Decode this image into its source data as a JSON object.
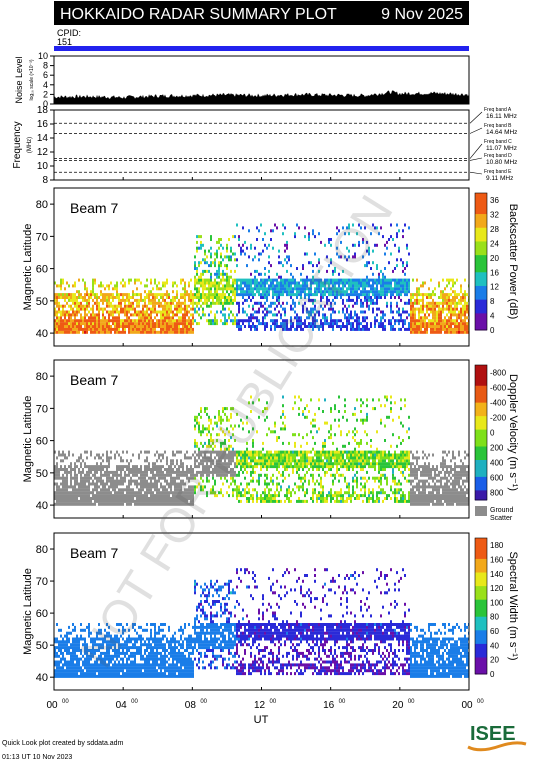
{
  "header": {
    "title": "HOKKAIDO RADAR SUMMARY PLOT",
    "date": "9 Nov 2025",
    "cpid_label": "CPID:",
    "cpid_value": "151"
  },
  "footer": {
    "credit": "Quick Look plot created by sddata.adm",
    "timestamp": "01:13 UT 10 Nov 2023",
    "logo_text": "ISEE",
    "watermark": "NOT FOR PUBLICATION"
  },
  "colors": {
    "header_bg": "#000000",
    "cpid_bar": "#2222ee",
    "ground_scatter": "#8c8c8c",
    "noise_fill": "#000000"
  },
  "chart_data": [
    {
      "type": "area",
      "name": "noise",
      "ylabel": "Noise Level",
      "ylabel_units": "log₁₀ scale (×10⁻³)",
      "ylim": [
        0,
        10
      ],
      "yticks": [
        "0",
        "2",
        "4",
        "6",
        "8",
        "10"
      ],
      "x": [
        0,
        2,
        4,
        6,
        8,
        10,
        12,
        14,
        16,
        18,
        19.5,
        20,
        22,
        24
      ],
      "values": [
        1.5,
        1.6,
        1.4,
        1.7,
        1.8,
        1.9,
        1.8,
        2.0,
        1.9,
        1.8,
        2.5,
        2.2,
        2.3,
        2.0
      ]
    },
    {
      "type": "line",
      "name": "frequency",
      "ylabel": "Frequency",
      "ylabel_units": "(MHz)",
      "ylim": [
        8,
        18
      ],
      "yticks": [
        "8",
        "10",
        "12",
        "14",
        "16",
        "18"
      ],
      "bands": [
        {
          "label": "Freq band A",
          "mhz": "16.11 MHz",
          "value": 16.11
        },
        {
          "label": "Freq band B",
          "mhz": "14.64 MHz",
          "value": 14.64
        },
        {
          "label": "Freq band C",
          "mhz": "11.07 MHz",
          "value": 11.07
        },
        {
          "label": "Freq band D",
          "mhz": "10.80 MHz",
          "value": 10.8
        },
        {
          "label": "Freq band E",
          "mhz": "9.11 MHz",
          "value": 9.11
        }
      ]
    },
    {
      "type": "heatmap",
      "name": "power",
      "beam": "Beam  7",
      "ylabel": "Magnetic Latitude",
      "ylim": [
        36,
        85
      ],
      "yticks": [
        "40",
        "50",
        "60",
        "70",
        "80"
      ],
      "cbar_label": "Backscatter Power (dB)",
      "cbar_ticks": [
        "0",
        "4",
        "8",
        "12",
        "16",
        "20",
        "24",
        "28",
        "32",
        "36"
      ],
      "cbar_range": [
        0,
        38
      ]
    },
    {
      "type": "heatmap",
      "name": "velocity",
      "beam": "Beam  7",
      "ylabel": "Magnetic Latitude",
      "ylim": [
        36,
        85
      ],
      "yticks": [
        "40",
        "50",
        "60",
        "70",
        "80"
      ],
      "cbar_label": "Doppler Velocity (m s⁻¹)",
      "cbar_ticks": [
        "800",
        "600",
        "400",
        "200",
        "0",
        "-200",
        "-400",
        "-600",
        "-800"
      ],
      "cbar_range": [
        -900,
        900
      ],
      "ground_label": "Ground",
      "ground_label2": "Scatter"
    },
    {
      "type": "heatmap",
      "name": "width",
      "beam": "Beam  7",
      "ylabel": "Magnetic Latitude",
      "ylim": [
        36,
        85
      ],
      "yticks": [
        "40",
        "50",
        "60",
        "70",
        "80"
      ],
      "cbar_label": "Spectral Width (m s⁻¹)",
      "cbar_ticks": [
        "0",
        "20",
        "40",
        "60",
        "80",
        "100",
        "120",
        "140",
        "160",
        "180"
      ],
      "cbar_range": [
        0,
        190
      ]
    }
  ],
  "xaxis": {
    "xlabel": "UT",
    "xlim": [
      0,
      24
    ],
    "ticks": [
      {
        "h": "00",
        "m": "00",
        "v": 0
      },
      {
        "h": "04",
        "m": "00",
        "v": 4
      },
      {
        "h": "08",
        "m": "00",
        "v": 8
      },
      {
        "h": "12",
        "m": "00",
        "v": 12
      },
      {
        "h": "16",
        "m": "00",
        "v": 16
      },
      {
        "h": "20",
        "m": "00",
        "v": 20
      },
      {
        "h": "00",
        "m": "00",
        "v": 24
      }
    ]
  }
}
